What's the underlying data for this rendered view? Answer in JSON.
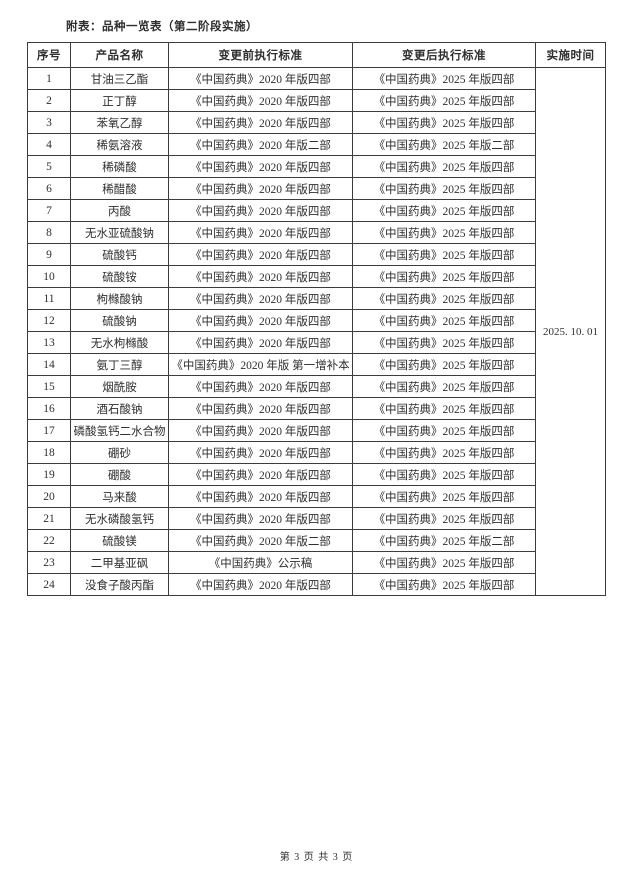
{
  "page": {
    "title": "附表：品种一览表（第二阶段实施）",
    "footer": "第 3 页 共 3 页"
  },
  "colors": {
    "background": "#ffffff",
    "border": "#3c3c3c",
    "text": "#2f2f2f"
  },
  "table": {
    "headers": [
      "序号",
      "产品名称",
      "变更前执行标准",
      "变更后执行标准",
      "实施时间"
    ],
    "implementation_date": "2025. 10. 01",
    "rows": [
      {
        "no": "1",
        "name": "甘油三乙酯",
        "before": "《中国药典》2020 年版四部",
        "after": "《中国药典》2025 年版四部"
      },
      {
        "no": "2",
        "name": "正丁醇",
        "before": "《中国药典》2020 年版四部",
        "after": "《中国药典》2025 年版四部"
      },
      {
        "no": "3",
        "name": "苯氧乙醇",
        "before": "《中国药典》2020 年版四部",
        "after": "《中国药典》2025 年版四部"
      },
      {
        "no": "4",
        "name": "稀氨溶液",
        "before": "《中国药典》2020 年版二部",
        "after": "《中国药典》2025 年版二部"
      },
      {
        "no": "5",
        "name": "稀磷酸",
        "before": "《中国药典》2020 年版四部",
        "after": "《中国药典》2025 年版四部"
      },
      {
        "no": "6",
        "name": "稀醋酸",
        "before": "《中国药典》2020 年版四部",
        "after": "《中国药典》2025 年版四部"
      },
      {
        "no": "7",
        "name": "丙酸",
        "before": "《中国药典》2020 年版四部",
        "after": "《中国药典》2025 年版四部"
      },
      {
        "no": "8",
        "name": "无水亚硫酸钠",
        "before": "《中国药典》2020 年版四部",
        "after": "《中国药典》2025 年版四部"
      },
      {
        "no": "9",
        "name": "硫酸钙",
        "before": "《中国药典》2020 年版四部",
        "after": "《中国药典》2025 年版四部"
      },
      {
        "no": "10",
        "name": "硫酸铵",
        "before": "《中国药典》2020 年版四部",
        "after": "《中国药典》2025 年版四部"
      },
      {
        "no": "11",
        "name": "枸橼酸钠",
        "before": "《中国药典》2020 年版四部",
        "after": "《中国药典》2025 年版四部"
      },
      {
        "no": "12",
        "name": "硫酸钠",
        "before": "《中国药典》2020 年版四部",
        "after": "《中国药典》2025 年版四部"
      },
      {
        "no": "13",
        "name": "无水枸橼酸",
        "before": "《中国药典》2020 年版四部",
        "after": "《中国药典》2025 年版四部"
      },
      {
        "no": "14",
        "name": "氨丁三醇",
        "before": "《中国药典》2020 年版 第一增补本",
        "after": "《中国药典》2025 年版四部"
      },
      {
        "no": "15",
        "name": "烟酰胺",
        "before": "《中国药典》2020 年版四部",
        "after": "《中国药典》2025 年版四部"
      },
      {
        "no": "16",
        "name": "酒石酸钠",
        "before": "《中国药典》2020 年版四部",
        "after": "《中国药典》2025 年版四部"
      },
      {
        "no": "17",
        "name": "磷酸氢钙二水合物",
        "before": "《中国药典》2020 年版四部",
        "after": "《中国药典》2025 年版四部"
      },
      {
        "no": "18",
        "name": "硼砂",
        "before": "《中国药典》2020 年版四部",
        "after": "《中国药典》2025 年版四部"
      },
      {
        "no": "19",
        "name": "硼酸",
        "before": "《中国药典》2020 年版四部",
        "after": "《中国药典》2025 年版四部"
      },
      {
        "no": "20",
        "name": "马来酸",
        "before": "《中国药典》2020 年版四部",
        "after": "《中国药典》2025 年版四部"
      },
      {
        "no": "21",
        "name": "无水磷酸氢钙",
        "before": "《中国药典》2020 年版四部",
        "after": "《中国药典》2025 年版四部"
      },
      {
        "no": "22",
        "name": "硫酸镁",
        "before": "《中国药典》2020 年版二部",
        "after": "《中国药典》2025 年版二部"
      },
      {
        "no": "23",
        "name": "二甲基亚砜",
        "before": "《中国药典》公示稿",
        "after": "《中国药典》2025 年版四部"
      },
      {
        "no": "24",
        "name": "没食子酸丙酯",
        "before": "《中国药典》2020 年版四部",
        "after": "《中国药典》2025 年版四部"
      }
    ]
  }
}
